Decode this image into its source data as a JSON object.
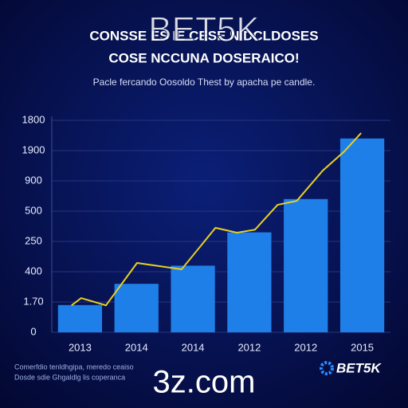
{
  "chart_data": {
    "type": "bar",
    "title": "CONSSE ES IE CESE NIDCLDOSES",
    "title_line2": "COSE NCCUNA DOSERAICO!",
    "subtitle": "Pacle fercando Oosoldo Thest by apacha pe candle.",
    "categories": [
      "2013",
      "2014",
      "2014",
      "2012",
      "2012",
      "2015"
    ],
    "values": [
      0.9,
      1.6,
      2.2,
      3.3,
      4.4,
      6.4
    ],
    "color": "#1f7fe8",
    "ylim": [
      0,
      7
    ],
    "yticks": [
      0,
      {
        "value": 1,
        "label": "1.70"
      },
      {
        "value": 2,
        "label": "400"
      },
      {
        "value": 3,
        "label": "250"
      },
      {
        "value": 4,
        "label": "500"
      },
      {
        "value": 5,
        "label": "900"
      },
      {
        "value": 6,
        "label": "1900"
      },
      {
        "value": 7,
        "label": "1800"
      }
    ],
    "grid": true,
    "line": {
      "type": "line",
      "color": "#e8d020",
      "x": [
        0.35,
        0.52,
        0.96,
        1.51,
        2.3,
        2.9,
        3.28,
        3.6,
        4.0,
        4.34,
        4.8,
        5.18,
        5.48
      ],
      "values": [
        0.89,
        1.13,
        0.89,
        2.29,
        2.08,
        3.45,
        3.29,
        3.39,
        4.21,
        4.34,
        5.34,
        5.97,
        6.58
      ],
      "xlim": [
        0,
        6
      ]
    }
  },
  "overlay": {
    "watermark_top": "BET5K",
    "watermark_bottom": "3z.com",
    "logo": "BET5K",
    "footer": [
      "Comerfdio tenldhgipa, meredo ceaiso",
      "Dosde sdie Ghgaldlg lis coperanca"
    ]
  }
}
